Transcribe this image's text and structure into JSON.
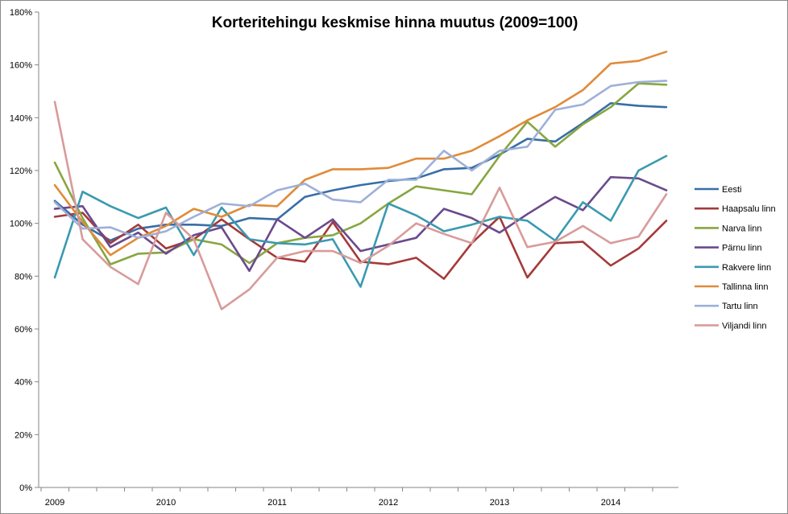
{
  "chart_data": {
    "type": "line",
    "title": "Korteritehingu keskmise hinna muutus (2009=100)",
    "xlabel": "",
    "ylabel": "",
    "ylim": [
      0,
      180
    ],
    "y_ticks": [
      "0%",
      "20%",
      "40%",
      "60%",
      "80%",
      "100%",
      "120%",
      "140%",
      "160%",
      "180%"
    ],
    "x_tick_labels": [
      "2009",
      "2010",
      "2011",
      "2012",
      "2013",
      "2014"
    ],
    "points_per_year": 4,
    "grid": false,
    "legend_position": "right",
    "series": [
      {
        "name": "Eesti",
        "color": "#386ea6",
        "values": [
          108.5,
          99.5,
          93.5,
          98,
          99.5,
          99.5,
          99,
          102,
          101.5,
          110,
          112.5,
          114.5,
          116,
          117,
          120.5,
          121,
          126,
          132,
          131,
          138,
          145.5,
          144.5,
          144
        ]
      },
      {
        "name": "Haapsalu linn",
        "color": "#a53a3a",
        "values": [
          102.5,
          104,
          92.5,
          99.5,
          90.5,
          94,
          101.5,
          94,
          87,
          85.5,
          100.5,
          85.5,
          84.5,
          87,
          79,
          92.5,
          102.5,
          79.5,
          92.5,
          93,
          84,
          90.5,
          101
        ]
      },
      {
        "name": "Narva linn",
        "color": "#88a640",
        "values": [
          123,
          102,
          84.5,
          88.5,
          89,
          94,
          92,
          85,
          92.5,
          94.5,
          95.5,
          100,
          107.5,
          114,
          112.5,
          111,
          125.5,
          138.5,
          129,
          137.5,
          144,
          153,
          152.5
        ]
      },
      {
        "name": "Pärnu linn",
        "color": "#6a4a8c",
        "values": [
          105.5,
          106.5,
          91,
          96.5,
          88.5,
          95.5,
          98.5,
          82,
          101.5,
          94.5,
          101.5,
          89.5,
          92,
          94.5,
          105.5,
          102,
          96.5,
          103.5,
          110,
          105,
          117.5,
          117,
          112.5
        ]
      },
      {
        "name": "Rakvere linn",
        "color": "#3a9ab0",
        "values": [
          79.5,
          112,
          106.5,
          102,
          106,
          88,
          106,
          94,
          92.5,
          92,
          94,
          76,
          107.5,
          103,
          97,
          99.5,
          102.5,
          101,
          93.5,
          108,
          101,
          120,
          125.5
        ]
      },
      {
        "name": "Tallinna linn",
        "color": "#e08b3a",
        "values": [
          114.5,
          100.5,
          88,
          94.5,
          99,
          105.5,
          102.5,
          107,
          106.5,
          116.5,
          120.5,
          120.5,
          121,
          124.5,
          124.5,
          127.5,
          133,
          139,
          144,
          150.5,
          160.5,
          161.5,
          165
        ]
      },
      {
        "name": "Tartu linn",
        "color": "#9db0d8",
        "values": [
          108,
          98,
          98.5,
          94.5,
          97,
          102.5,
          107.5,
          106.5,
          112.5,
          115,
          109,
          108,
          116.5,
          116.5,
          127.5,
          120,
          127.5,
          129,
          143,
          145,
          152,
          153.5,
          154
        ]
      },
      {
        "name": "Viljandi linn",
        "color": "#d89b9a",
        "values": [
          146,
          94,
          83.5,
          77,
          104,
          94,
          67.5,
          75,
          87,
          89.5,
          89.5,
          85,
          91.5,
          100,
          96,
          92.5,
          113.5,
          91,
          93,
          99,
          92.5,
          95,
          111
        ]
      }
    ]
  }
}
